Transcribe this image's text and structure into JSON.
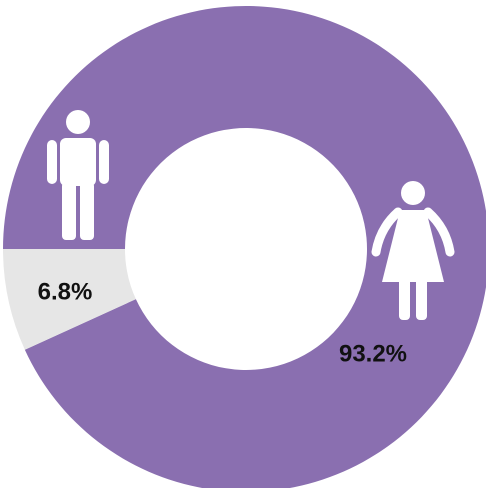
{
  "chart_data": {
    "type": "donut",
    "values": [
      93.2,
      6.8
    ],
    "value_labels": [
      "93.2%",
      "6.8%"
    ],
    "colors": [
      "#8a6fb0",
      "#e6e6e6"
    ]
  }
}
